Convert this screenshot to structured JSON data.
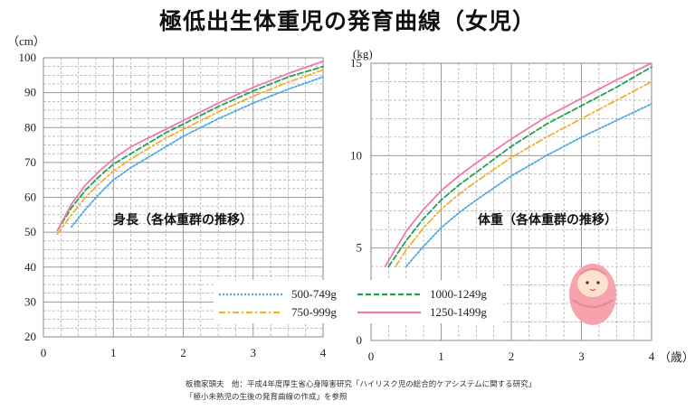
{
  "page": {
    "title": "極低出生体重児の発育曲線（女児）",
    "credit_line1": "板橋家頭夫　他：平成4年度厚生省心身障害研究「ハイリスク児の総合的ケアシステムに関する研究」",
    "credit_line2": "「極小未熟児の生後の発育曲線の作成」を参照"
  },
  "colors": {
    "500-749g": "#4aa8e0",
    "750-999g": "#f0b030",
    "1000-1249g": "#22a050",
    "1250-1499g": "#ee7aa8",
    "grid": "#999999",
    "baby_blanket": "#f6a3ac",
    "baby_skin": "#fde2d0"
  },
  "legend": [
    {
      "label": "500-749g",
      "style": "dotted"
    },
    {
      "label": "750-999g",
      "style": "dash-dot"
    },
    {
      "label": "1000-1249g",
      "style": "dashed"
    },
    {
      "label": "1250-1499g",
      "style": "solid"
    }
  ],
  "chart_data": [
    {
      "type": "line",
      "annotation": "身長（各体重群の推移）",
      "unit": "（cm）",
      "xlim": [
        0,
        4
      ],
      "ylim": [
        20,
        100
      ],
      "x_ticks": [
        "0",
        "1",
        "2",
        "3",
        "4"
      ],
      "y_ticks": [
        "20",
        "30",
        "40",
        "50",
        "60",
        "70",
        "80",
        "90",
        "100"
      ],
      "grid": true,
      "series": [
        {
          "name": "500-749g",
          "x": [
            0.4,
            0.6,
            0.8,
            1.0,
            1.25,
            1.5,
            1.75,
            2.0,
            2.5,
            3.0,
            3.5,
            4.0
          ],
          "y": [
            51.5,
            56.5,
            61,
            65,
            68.5,
            71.5,
            74.5,
            77.5,
            82.5,
            87,
            91,
            94.5
          ]
        },
        {
          "name": "750-999g",
          "x": [
            0.2,
            0.4,
            0.6,
            0.8,
            1.0,
            1.25,
            1.5,
            1.75,
            2.0,
            2.5,
            3.0,
            3.5,
            4.0
          ],
          "y": [
            49.5,
            55,
            60,
            64,
            67.5,
            71,
            74,
            77,
            79.5,
            84.5,
            89,
            93,
            96.5
          ]
        },
        {
          "name": "1000-1249g",
          "x": [
            0.2,
            0.4,
            0.6,
            0.8,
            1.0,
            1.25,
            1.5,
            1.75,
            2.0,
            2.5,
            3.0,
            3.5,
            4.0
          ],
          "y": [
            50.5,
            57,
            62,
            66,
            69.5,
            72.5,
            75.5,
            78.5,
            81,
            86,
            90.5,
            94.5,
            97.5
          ]
        },
        {
          "name": "1250-1499g",
          "x": [
            0.2,
            0.4,
            0.6,
            0.8,
            1.0,
            1.25,
            1.5,
            1.75,
            2.0,
            2.5,
            3.0,
            3.5,
            4.0
          ],
          "y": [
            50.5,
            58,
            63.5,
            67.5,
            71,
            74.5,
            77,
            79.5,
            82,
            87,
            91.5,
            95.5,
            99
          ]
        }
      ]
    },
    {
      "type": "line",
      "annotation": "体重（各体重群の推移）",
      "unit": "(kg)",
      "xlabel": "（歳）",
      "xlim": [
        0,
        4
      ],
      "ylim": [
        0,
        15
      ],
      "x_ticks": [
        "0",
        "1",
        "2",
        "3",
        "4"
      ],
      "y_ticks": [
        "0",
        "5",
        "10",
        "15"
      ],
      "grid": true,
      "series": [
        {
          "name": "500-749g",
          "x": [
            0.5,
            0.75,
            1.0,
            1.25,
            1.5,
            2.0,
            2.5,
            3.0,
            3.5,
            4.0
          ],
          "y": [
            4.0,
            5.1,
            6.1,
            6.9,
            7.6,
            8.9,
            10.0,
            11.0,
            11.9,
            12.8
          ]
        },
        {
          "name": "750-999g",
          "x": [
            0.35,
            0.5,
            0.75,
            1.0,
            1.25,
            1.5,
            2.0,
            2.5,
            3.0,
            3.5,
            4.0
          ],
          "y": [
            4.0,
            4.9,
            6.1,
            7.1,
            7.9,
            8.6,
            9.9,
            11.0,
            12.0,
            13.0,
            14.0
          ]
        },
        {
          "name": "1000-1249g",
          "x": [
            0.25,
            0.5,
            0.75,
            1.0,
            1.25,
            1.5,
            2.0,
            2.5,
            3.0,
            3.5,
            4.0
          ],
          "y": [
            4.0,
            5.4,
            6.6,
            7.6,
            8.4,
            9.1,
            10.5,
            11.7,
            12.7,
            13.7,
            14.8
          ]
        },
        {
          "name": "1250-1499g",
          "x": [
            0.2,
            0.5,
            0.75,
            1.0,
            1.25,
            1.5,
            2.0,
            2.5,
            3.0,
            3.5,
            4.0
          ],
          "y": [
            4.0,
            5.9,
            7.1,
            8.1,
            8.9,
            9.6,
            10.9,
            12.1,
            13.1,
            14.1,
            15.0
          ]
        }
      ]
    }
  ]
}
